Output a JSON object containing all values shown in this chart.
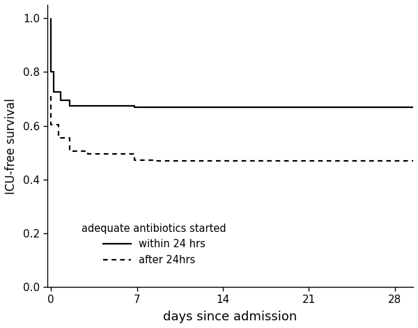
{
  "solid_x": [
    0,
    0,
    0.2,
    0.2,
    0.8,
    0.8,
    1.5,
    1.5,
    6.8,
    6.8,
    29.5
  ],
  "solid_y": [
    1.0,
    0.8,
    0.8,
    0.725,
    0.725,
    0.695,
    0.695,
    0.675,
    0.675,
    0.668,
    0.668
  ],
  "dashed_x": [
    0,
    0,
    0.6,
    0.6,
    1.5,
    1.5,
    3.0,
    3.0,
    6.8,
    6.8,
    8.5,
    8.5,
    29.5
  ],
  "dashed_y": [
    0.71,
    0.605,
    0.605,
    0.555,
    0.555,
    0.505,
    0.505,
    0.495,
    0.495,
    0.473,
    0.473,
    0.47,
    0.47
  ],
  "xlabel": "days since admission",
  "ylabel": "ICU-free survival",
  "xlim": [
    -0.3,
    29.5
  ],
  "ylim": [
    0.0,
    1.05
  ],
  "xticks": [
    0,
    7,
    14,
    21,
    28
  ],
  "yticks": [
    0.0,
    0.2,
    0.4,
    0.6,
    0.8,
    1.0
  ],
  "legend_title": "adequate antibiotics started",
  "legend_solid": "within 24 hrs",
  "legend_dashed": "after 24hrs",
  "line_color": "#000000",
  "background_color": "#ffffff",
  "linewidth": 1.6
}
